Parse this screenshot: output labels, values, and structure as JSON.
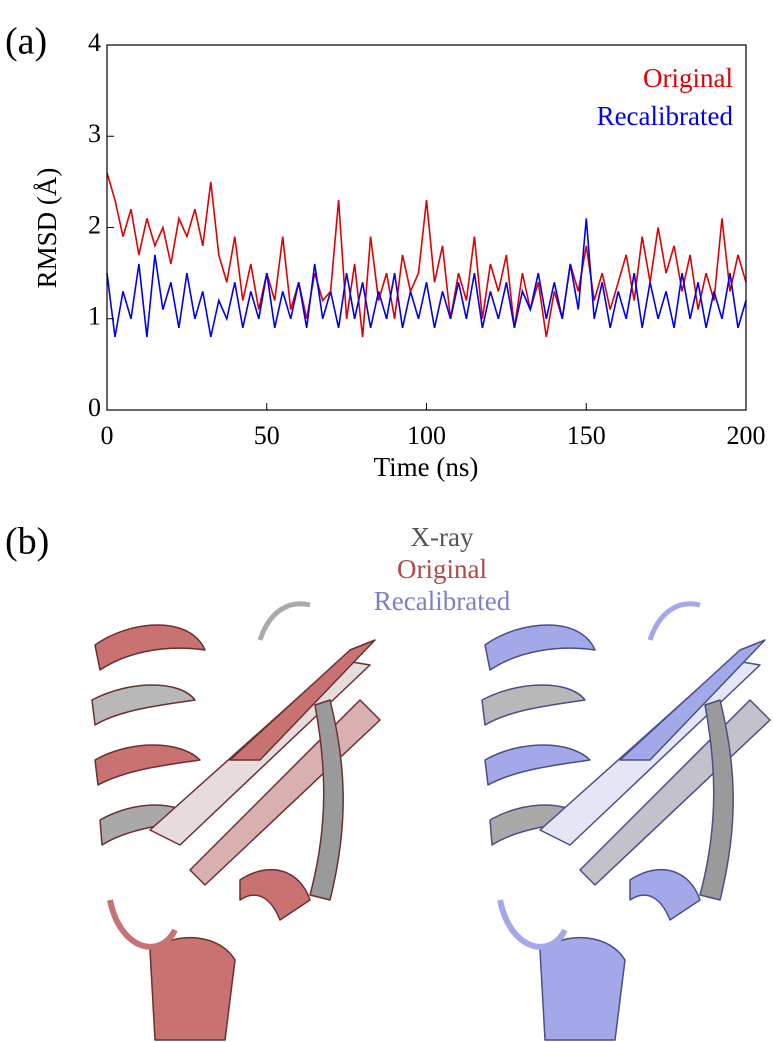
{
  "chart_data": {
    "type": "line",
    "panel_label": "(a)",
    "xlabel": "Time (ns)",
    "ylabel": "RMSD (Å)",
    "x": [
      0,
      2.5,
      5,
      7.5,
      10,
      12.5,
      15,
      17.5,
      20,
      22.5,
      25,
      27.5,
      30,
      32.5,
      35,
      37.5,
      40,
      42.5,
      45,
      47.5,
      50,
      52.5,
      55,
      57.5,
      60,
      62.5,
      65,
      67.5,
      70,
      72.5,
      75,
      77.5,
      80,
      82.5,
      85,
      87.5,
      90,
      92.5,
      95,
      97.5,
      100,
      102.5,
      105,
      107.5,
      110,
      112.5,
      115,
      117.5,
      120,
      122.5,
      125,
      127.5,
      130,
      132.5,
      135,
      137.5,
      140,
      142.5,
      145,
      147.5,
      150,
      152.5,
      155,
      157.5,
      160,
      162.5,
      165,
      167.5,
      170,
      172.5,
      175,
      177.5,
      180,
      182.5,
      185,
      187.5,
      190,
      192.5,
      195,
      197.5,
      200
    ],
    "series": [
      {
        "name": "Original",
        "color": "#e00000",
        "values": [
          2.6,
          2.3,
          1.9,
          2.2,
          1.7,
          2.1,
          1.8,
          2.0,
          1.6,
          2.1,
          1.9,
          2.2,
          1.8,
          2.5,
          1.7,
          1.4,
          1.9,
          1.2,
          1.6,
          1.1,
          1.5,
          1.2,
          1.9,
          1.1,
          1.4,
          1.0,
          1.5,
          1.2,
          1.3,
          2.3,
          1.0,
          1.6,
          0.8,
          1.9,
          1.2,
          1.5,
          1.0,
          1.7,
          1.3,
          1.5,
          2.3,
          1.4,
          1.8,
          1.0,
          1.5,
          1.2,
          1.9,
          1.0,
          1.6,
          1.3,
          1.7,
          0.9,
          1.5,
          1.1,
          1.4,
          0.8,
          1.3,
          1.0,
          1.6,
          1.3,
          1.8,
          1.2,
          1.5,
          1.1,
          1.4,
          1.7,
          1.2,
          1.9,
          1.4,
          2.0,
          1.5,
          1.8,
          1.3,
          1.7,
          1.1,
          1.5,
          1.2,
          2.1,
          1.3,
          1.7,
          1.4
        ]
      },
      {
        "name": "Recalibrated",
        "color": "#0000f0",
        "values": [
          1.5,
          0.8,
          1.3,
          1.0,
          1.6,
          0.8,
          1.7,
          1.1,
          1.4,
          0.9,
          1.5,
          1.0,
          1.3,
          0.8,
          1.2,
          1.0,
          1.4,
          0.9,
          1.3,
          1.0,
          1.5,
          0.9,
          1.3,
          1.0,
          1.4,
          0.9,
          1.6,
          1.0,
          1.3,
          0.9,
          1.5,
          1.0,
          1.4,
          0.9,
          1.3,
          1.0,
          1.5,
          0.9,
          1.3,
          1.0,
          1.4,
          0.9,
          1.3,
          1.0,
          1.4,
          1.0,
          1.5,
          0.9,
          1.3,
          1.0,
          1.4,
          0.9,
          1.3,
          1.1,
          1.5,
          1.0,
          1.4,
          1.0,
          1.6,
          1.1,
          2.1,
          1.0,
          1.4,
          0.9,
          1.3,
          1.0,
          1.5,
          0.9,
          1.4,
          1.0,
          1.3,
          0.9,
          1.5,
          1.0,
          1.4,
          0.9,
          1.3,
          1.0,
          1.5,
          0.9,
          1.2
        ]
      }
    ],
    "xlim": [
      0,
      200
    ],
    "xticks": [
      0,
      50,
      100,
      150,
      200
    ],
    "ylim": [
      0,
      4
    ],
    "yticks": [
      0,
      1,
      2,
      3,
      4
    ],
    "legend": "upper right"
  },
  "panel_b": {
    "panel_label": "(b)",
    "legend": [
      {
        "text": "X-ray",
        "color": "#555555"
      },
      {
        "text": "Original",
        "color": "#b04848"
      },
      {
        "text": "Recalibrated",
        "color": "#7a7fc8"
      }
    ]
  }
}
